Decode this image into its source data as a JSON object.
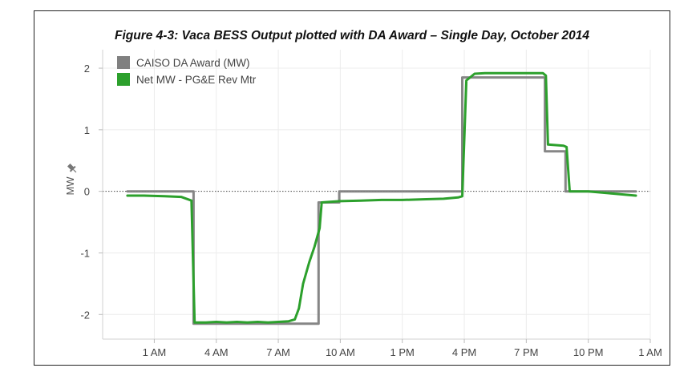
{
  "title": "Figure 4-3: Vaca BESS Output plotted with DA Award – Single Day, October 2014",
  "chart_data": {
    "type": "line",
    "title": "Figure 4-3: Vaca BESS Output plotted with DA Award – Single Day, October 2014",
    "xlabel": "",
    "ylabel": "MW",
    "xlim": [
      -1.5,
      25.0
    ],
    "ylim": [
      -2.4,
      2.3
    ],
    "x_ticks": [
      {
        "x": 1,
        "label": "1 AM"
      },
      {
        "x": 4,
        "label": "4 AM"
      },
      {
        "x": 7,
        "label": "7 AM"
      },
      {
        "x": 10,
        "label": "10 AM"
      },
      {
        "x": 13,
        "label": "1 PM"
      },
      {
        "x": 16,
        "label": "4 PM"
      },
      {
        "x": 19,
        "label": "7 PM"
      },
      {
        "x": 22,
        "label": "10 PM"
      },
      {
        "x": 25,
        "label": "1 AM"
      }
    ],
    "y_ticks": [
      {
        "y": 2,
        "label": "2"
      },
      {
        "y": 1,
        "label": "1"
      },
      {
        "y": 0,
        "label": "0"
      },
      {
        "y": -1,
        "label": "-1"
      },
      {
        "y": -2,
        "label": "-2"
      }
    ],
    "grid": true,
    "zero_line": "dotted",
    "legend": "top-left",
    "series": [
      {
        "name": "CAISO DA Award (MW)",
        "color": "#808080",
        "points": [
          [
            -0.3,
            0
          ],
          [
            2.9,
            0
          ],
          [
            2.9,
            -2.15
          ],
          [
            8.95,
            -2.15
          ],
          [
            8.95,
            -0.18
          ],
          [
            9.95,
            -0.18
          ],
          [
            9.95,
            0
          ],
          [
            15.9,
            0
          ],
          [
            15.9,
            1.85
          ],
          [
            19.9,
            1.85
          ],
          [
            19.9,
            0.65
          ],
          [
            20.9,
            0.65
          ],
          [
            20.9,
            0
          ],
          [
            24.3,
            0
          ]
        ]
      },
      {
        "name": "Net MW - PG&E Rev Mtr",
        "color": "#2ca02c",
        "points": [
          [
            -0.3,
            -0.07
          ],
          [
            0.5,
            -0.07
          ],
          [
            1.5,
            -0.08
          ],
          [
            2.3,
            -0.09
          ],
          [
            2.8,
            -0.15
          ],
          [
            2.95,
            -2.13
          ],
          [
            3.5,
            -2.13
          ],
          [
            4.0,
            -2.12
          ],
          [
            4.5,
            -2.13
          ],
          [
            5.0,
            -2.12
          ],
          [
            5.5,
            -2.13
          ],
          [
            6.0,
            -2.12
          ],
          [
            6.5,
            -2.13
          ],
          [
            7.0,
            -2.12
          ],
          [
            7.5,
            -2.11
          ],
          [
            7.8,
            -2.08
          ],
          [
            8.0,
            -1.9
          ],
          [
            8.2,
            -1.5
          ],
          [
            8.5,
            -1.15
          ],
          [
            8.75,
            -0.9
          ],
          [
            9.0,
            -0.6
          ],
          [
            9.1,
            -0.18
          ],
          [
            9.5,
            -0.17
          ],
          [
            10.0,
            -0.16
          ],
          [
            11.0,
            -0.15
          ],
          [
            12.0,
            -0.14
          ],
          [
            13.0,
            -0.14
          ],
          [
            14.0,
            -0.13
          ],
          [
            15.0,
            -0.12
          ],
          [
            15.7,
            -0.1
          ],
          [
            15.9,
            -0.08
          ],
          [
            16.1,
            1.8
          ],
          [
            16.5,
            1.91
          ],
          [
            17.0,
            1.92
          ],
          [
            18.0,
            1.92
          ],
          [
            19.0,
            1.92
          ],
          [
            19.8,
            1.92
          ],
          [
            19.95,
            1.88
          ],
          [
            20.05,
            0.76
          ],
          [
            20.8,
            0.74
          ],
          [
            20.95,
            0.72
          ],
          [
            21.1,
            0.0
          ],
          [
            22.0,
            0.0
          ],
          [
            23.0,
            -0.03
          ],
          [
            24.3,
            -0.07
          ]
        ]
      }
    ]
  }
}
